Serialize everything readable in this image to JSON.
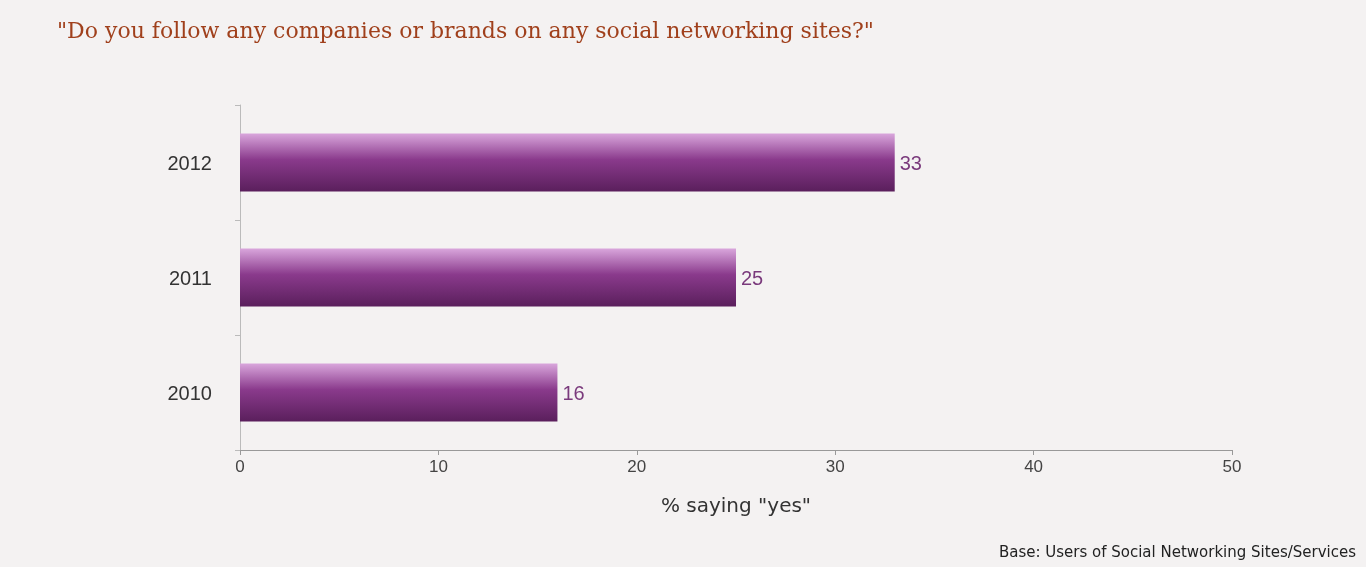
{
  "chart_data": {
    "type": "bar",
    "orientation": "horizontal",
    "title": "\"Do you follow any companies or brands on any social networking sites?\"",
    "categories": [
      "2012",
      "2011",
      "2010"
    ],
    "values": [
      33,
      25,
      16
    ],
    "color": "#8a3a8c",
    "xlabel": "% saying \"yes\"",
    "xlim": [
      0,
      50
    ],
    "xticks": [
      0,
      10,
      20,
      30,
      40,
      50
    ],
    "data_labels": true,
    "grid": false,
    "annotations": [
      "Base: Users of Social Networking Sites/Services"
    ]
  }
}
